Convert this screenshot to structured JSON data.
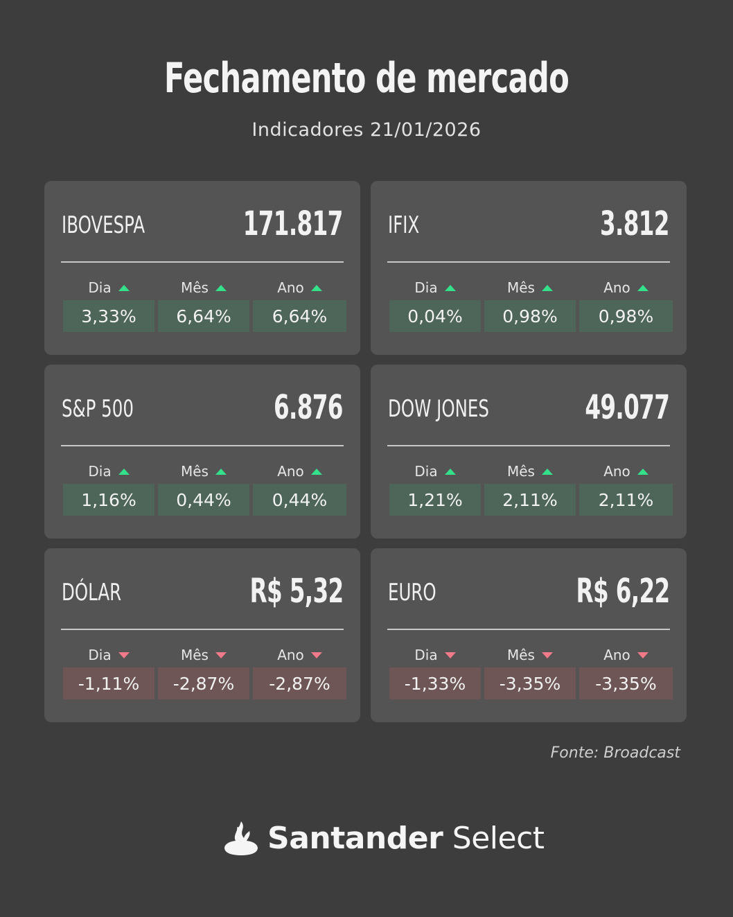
{
  "header": {
    "title": "Fechamento de mercado",
    "subtitle": "Indicadores 21/01/2026"
  },
  "period_labels": {
    "day": "Dia",
    "month": "Mês",
    "year": "Ano"
  },
  "cards": [
    {
      "name": "IBOVESPA",
      "value": "171.817",
      "trend": "up",
      "day": "3,33%",
      "month": "6,64%",
      "year": "6,64%"
    },
    {
      "name": "IFIX",
      "value": "3.812",
      "trend": "up",
      "day": "0,04%",
      "month": "0,98%",
      "year": "0,98%"
    },
    {
      "name": "S&P 500",
      "value": "6.876",
      "trend": "up",
      "day": "1,16%",
      "month": "0,44%",
      "year": "0,44%"
    },
    {
      "name": "DOW JONES",
      "value": "49.077",
      "trend": "up",
      "day": "1,21%",
      "month": "2,11%",
      "year": "2,11%"
    },
    {
      "name": "DÓLAR",
      "value": "R$ 5,32",
      "trend": "down",
      "day": "-1,11%",
      "month": "-2,87%",
      "year": "-2,87%"
    },
    {
      "name": "EURO",
      "value": "R$ 6,22",
      "trend": "down",
      "day": "-1,33%",
      "month": "-3,35%",
      "year": "-3,35%"
    }
  ],
  "footer": {
    "source": "Fonte: Broadcast",
    "logo_brand": "Santander",
    "logo_product": "Select",
    "logo_icon": "santander-flame-icon"
  },
  "colors": {
    "background": "#3d3d3d",
    "card": "#545454",
    "positive_fill": "#4e6659",
    "negative_fill": "#6e5656",
    "up_arrow": "#35e08a",
    "down_arrow": "#f07a8a"
  }
}
